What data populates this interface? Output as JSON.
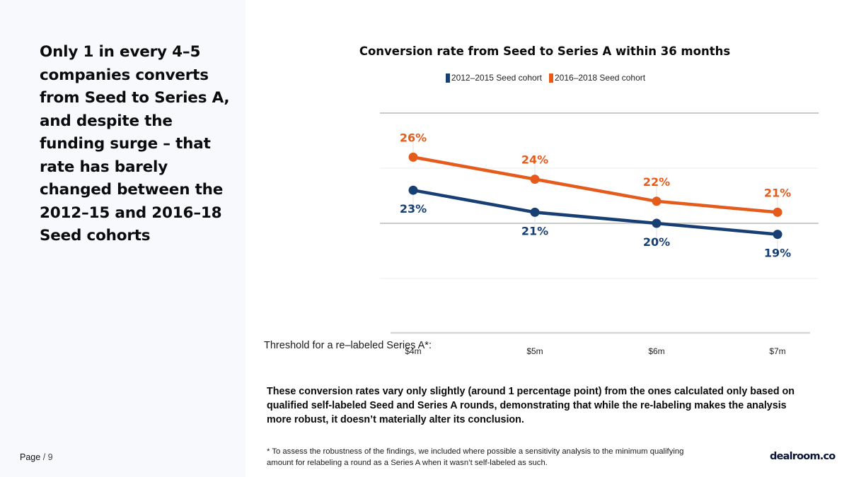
{
  "headline": "Only 1 in every 4–5 companies converts from Seed to Series A, and despite the funding surge – that rate has barely changed between the 2012–15 and 2016–18 Seed cohorts",
  "page": {
    "label": "Page",
    "separator": "/",
    "number": "9"
  },
  "note": "These conversion rates vary only slightly (around 1 percentage point) from the ones calculated only based on qualified self-labeled Seed and Series A rounds, demonstrating that while the re-labeling makes the analysis more robust, it doesn’t materially alter its conclusion.",
  "footnote": "* To assess the robustness of the findings, we included where possible a sensitivity analysis to the minimum qualifying amount for relabeling a round as a Series A when it wasn’t self-labeled as such.",
  "logo": "dealroom.co",
  "chart_data": {
    "type": "line",
    "title": "Conversion rate from Seed to Series A within 36 months",
    "xlabel": "Threshold for a re–labeled Series A*:",
    "ylabel": "",
    "categories": [
      "$4m",
      "$5m",
      "$6m",
      "$7m"
    ],
    "ylim": [
      10,
      30
    ],
    "grid": true,
    "legend_position": "top-center",
    "series": [
      {
        "name": "2012–2015 Seed cohort",
        "color": "#173f73",
        "values": [
          23,
          21,
          20,
          19
        ],
        "labels": [
          "23%",
          "21%",
          "20%",
          "19%"
        ],
        "label_position": "below"
      },
      {
        "name": "2016–2018 Seed cohort",
        "color": "#e45b1c",
        "values": [
          26,
          24,
          22,
          21
        ],
        "labels": [
          "26%",
          "24%",
          "22%",
          "21%"
        ],
        "label_position": "above"
      }
    ]
  }
}
